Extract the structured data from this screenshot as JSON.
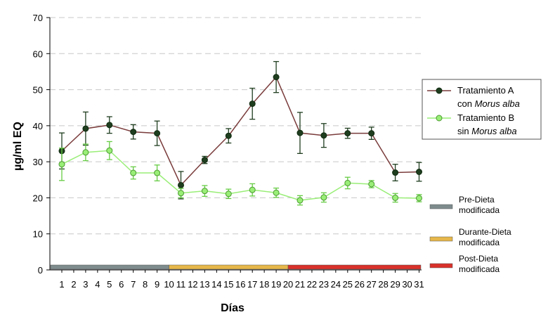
{
  "chart_data": {
    "type": "line",
    "xlabel": "Días",
    "ylabel": "µg/ml EQ",
    "ylim": [
      0,
      70
    ],
    "yticks": [
      0,
      10,
      20,
      30,
      40,
      50,
      60,
      70
    ],
    "grid": "horizontal dashed",
    "x": [
      1,
      2,
      3,
      4,
      5,
      6,
      7,
      8,
      9,
      10,
      11,
      12,
      13,
      14,
      15,
      16,
      17,
      18,
      19,
      20,
      21,
      22,
      23,
      24,
      25,
      26,
      27,
      28,
      29,
      30,
      31
    ],
    "series": [
      {
        "name": "Tratamiento A con Morus alba",
        "legend_line1": "Tratamiento A",
        "legend_line2_prefix": "con ",
        "legend_line2_italic": "Morus alba",
        "color": "#7a3b3b",
        "marker_color": "#1f3d1f",
        "errorbar_color": "#1f3d1f",
        "x": [
          1,
          3,
          5,
          7,
          9,
          11,
          13,
          15,
          17,
          19,
          21,
          23,
          25,
          27,
          29,
          31
        ],
        "y": [
          33.0,
          39.2,
          40.2,
          38.3,
          37.9,
          23.5,
          30.5,
          37.2,
          46.1,
          53.5,
          38.0,
          37.3,
          37.9,
          37.9,
          27.0,
          27.2
        ],
        "err": [
          5.0,
          4.6,
          2.3,
          2.0,
          3.4,
          3.8,
          1.0,
          2.0,
          4.3,
          4.3,
          5.7,
          3.3,
          1.4,
          1.7,
          2.3,
          2.6
        ]
      },
      {
        "name": "Tratamiento B sin Morus alba",
        "legend_line1": "Tratamiento B",
        "legend_line2_prefix": "sin ",
        "legend_line2_italic": "Morus alba",
        "color": "#99ee77",
        "marker_color": "#99ee77",
        "errorbar_color": "#66cc44",
        "x": [
          1,
          3,
          5,
          7,
          9,
          11,
          13,
          15,
          17,
          19,
          21,
          23,
          25,
          27,
          29,
          31
        ],
        "y": [
          29.3,
          32.6,
          33.1,
          26.9,
          26.9,
          21.3,
          21.9,
          21.1,
          22.2,
          21.4,
          19.3,
          20.1,
          24.1,
          23.8,
          20.0,
          19.9
        ],
        "err": [
          4.5,
          2.3,
          2.5,
          1.7,
          2.2,
          1.3,
          1.5,
          1.3,
          1.7,
          1.3,
          1.3,
          1.3,
          1.6,
          1.0,
          1.2,
          1.0
        ]
      }
    ],
    "phases": [
      {
        "line1": "Pre-Dieta",
        "line2": "modificada",
        "color": "#7f8c8d",
        "start_day": 1,
        "end_day": 10
      },
      {
        "line1": "Durante-Dieta",
        "line2": "modificada",
        "color": "#e6b84a",
        "start_day": 10,
        "end_day": 20
      },
      {
        "line1": "Post-Dieta",
        "line2": "modificada",
        "color": "#d9312b",
        "start_day": 20,
        "end_day": 31
      }
    ]
  }
}
